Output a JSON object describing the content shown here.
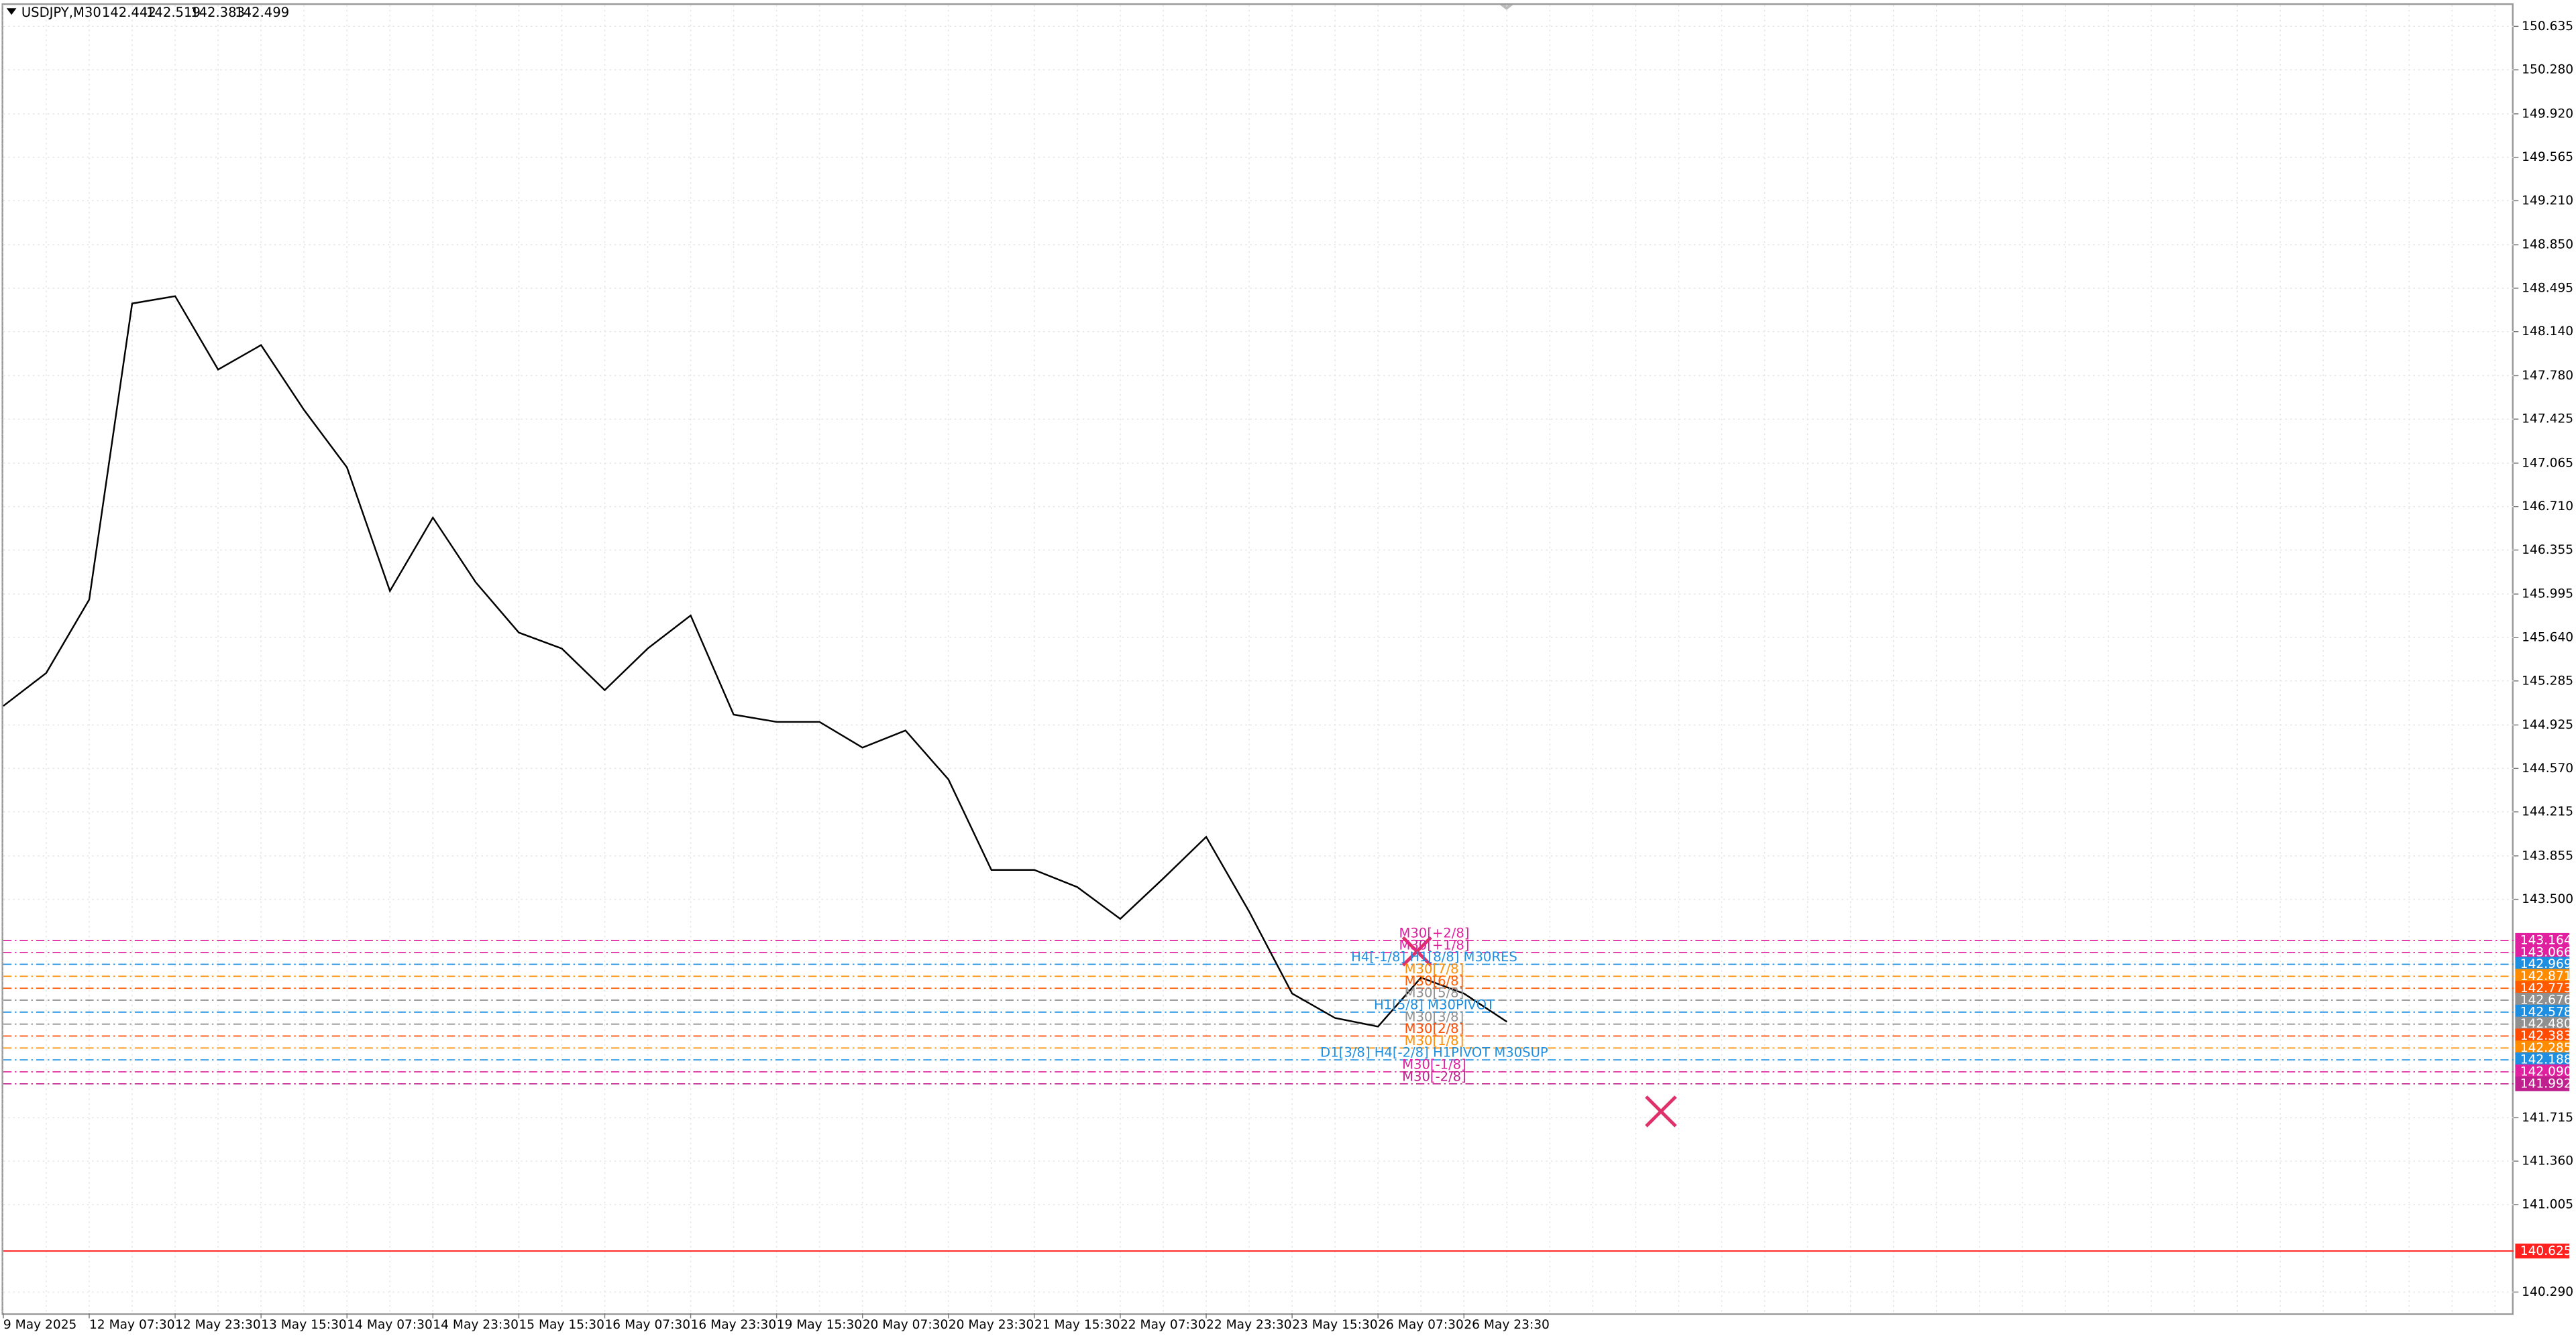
{
  "chart_data": {
    "type": "line",
    "symbol": "USDJPY,M30",
    "ohlc": [
      142.442,
      142.519,
      142.383,
      142.499
    ],
    "categories": [
      "9 May 2025",
      null,
      "12 May 07:30",
      null,
      "12 May 23:30",
      null,
      "13 May 15:30",
      null,
      "14 May 07:30",
      null,
      "14 May 23:30",
      null,
      "15 May 15:30",
      null,
      "16 May 07:30",
      null,
      "16 May 23:30",
      null,
      "19 May 15:30",
      null,
      "20 May 07:30",
      null,
      "20 May 23:30",
      null,
      "21 May 15:30",
      null,
      "22 May 07:30",
      null,
      "22 May 23:30",
      null,
      "23 May 15:30",
      null,
      "26 May 07:30",
      null,
      "26 May 23:30",
      null,
      null,
      null,
      null,
      null,
      null,
      null,
      null,
      null,
      null,
      null,
      null,
      null,
      null,
      null,
      null,
      null,
      null,
      null,
      null,
      null,
      null,
      null,
      null
    ],
    "series": [
      {
        "name": "USDJPY",
        "color": "#000000",
        "values": [
          145.08,
          145.35,
          145.95,
          148.37,
          148.43,
          147.83,
          148.03,
          147.5,
          147.03,
          146.02,
          146.62,
          146.09,
          145.68,
          145.55,
          145.21,
          145.55,
          145.82,
          145.01,
          144.95,
          144.95,
          144.74,
          144.88,
          144.48,
          143.74,
          143.74,
          143.6,
          143.34,
          143.67,
          144.01,
          143.4,
          142.73,
          142.53,
          142.46,
          142.86,
          142.73,
          142.499,
          null,
          null,
          null,
          null,
          null,
          null,
          null,
          null,
          null,
          null,
          null,
          null,
          null,
          null,
          null,
          null,
          null,
          null,
          null,
          null,
          null,
          null,
          null
        ]
      }
    ],
    "ylim": [
      140.116,
      150.81
    ],
    "yticks": [
      150.635,
      {
        "value": 150.28,
        "label": "150.280"
      },
      {
        "value": 149.92,
        "label": "149.920"
      },
      149.565,
      {
        "value": 149.21,
        "label": "149.210"
      },
      {
        "value": 148.85,
        "label": "148.850"
      },
      148.495,
      {
        "value": 148.14,
        "label": "148.140"
      },
      {
        "value": 147.78,
        "label": "147.780"
      },
      147.425,
      147.065,
      {
        "value": 146.71,
        "label": "146.710"
      },
      146.355,
      145.995,
      {
        "value": 145.64,
        "label": "145.640"
      },
      145.285,
      144.925,
      {
        "value": 144.57,
        "label": "144.570"
      },
      144.215,
      143.855,
      {
        "value": 143.5,
        "label": "143.500"
      },
      141.715,
      {
        "value": 141.36,
        "label": "141.360"
      },
      141.005,
      {
        "value": 140.29,
        "label": "140.290"
      }
    ],
    "grid": true,
    "levels": {
      "values": [
        143.164,
        143.066,
        142.969,
        142.871,
        142.773,
        142.676,
        142.578,
        142.48,
        142.383,
        142.285,
        142.188,
        142.09,
        141.992,
        140.625
      ],
      "value_labels": [
        "143.164",
        "143.066",
        "142.969",
        "142.871",
        "142.773",
        "142.676",
        "142.578",
        "142.480",
        "142.383",
        "142.285",
        "142.188",
        "142.090",
        "141.992",
        "140.625"
      ],
      "names": [
        "M30[+2/8]",
        "M30[+1/8]",
        "H4[-1/8] H1[8/8] M30RES",
        "M30[7/8]",
        "M30[6/8]",
        "M30[5/8]",
        "H1[5/8] M30PIVOT",
        "M30[3/8]",
        "M30[2/8]",
        "M30[1/8]",
        "D1[3/8] H4[-2/8] H1PIVOT M30SUP",
        "M30[-1/8]",
        "M30[-2/8]",
        null
      ],
      "colors": [
        "#e0209e",
        "#e0209e",
        "#1e8fe0",
        "#ff8c00",
        "#ff5a00",
        "#909090",
        "#1e8fe0",
        "#909090",
        "#ff4a00",
        "#ff8c00",
        "#1e8fe0",
        "#e0209e",
        "#c0208e",
        "#ff2020"
      ]
    }
  }
}
